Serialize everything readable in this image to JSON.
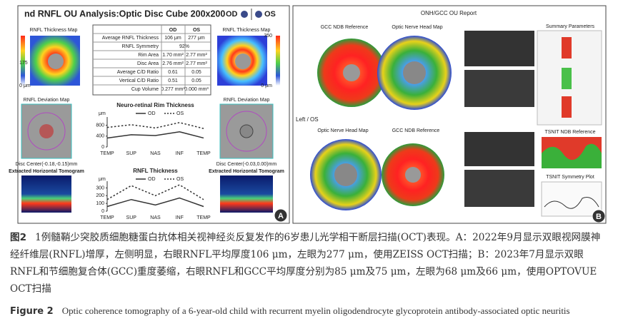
{
  "panel_a": {
    "title": "nd RNFL OU Analysis:Optic Disc Cube 200x200",
    "od": "OD",
    "os": "OS",
    "left_map_label": "RNFL Thickness Map",
    "right_map_label": "RNFL Thickness Map",
    "left_scale_mid": "175",
    "left_scale_low": "0 μm",
    "right_scale_high": "350",
    "right_scale_low": "0 μm",
    "table": {
      "header": [
        "OD",
        "OS"
      ],
      "rows": [
        [
          "Average RNFL Thickness",
          "106 μm",
          "277 μm"
        ],
        [
          "RNFL Symmetry",
          "92%"
        ],
        [
          "Rim Area",
          "1.70 mm²",
          "2.77 mm²"
        ],
        [
          "Disc Area",
          "2.76 mm²",
          "2.77 mm²"
        ],
        [
          "Average C/D Ratio",
          "0.61",
          "0.05"
        ],
        [
          "Vertical C/D Ratio",
          "0.51",
          "0.05"
        ],
        [
          "Cup Volume",
          "0.277 mm³",
          "0.000 mm³"
        ]
      ]
    },
    "left_dev_label": "RNFL Deviation Map",
    "right_dev_label": "RNFL Deviation Map",
    "left_disc_center": "Disc Center(-0.18,-0.15)mm",
    "right_disc_center": "Disc Center(-0.03,0.00)mm",
    "left_tomogram_label": "Extracted Horizontal Tomogram",
    "right_tomogram_label": "Extracted Horizontal Tomogram",
    "badge": "A"
  },
  "panel_b": {
    "title": "ONH/GCC OU Report",
    "top_left_label": "GCC NDB Reference",
    "top_mid_label": "Optic Nerve Head Map",
    "side_label": "Left / OS",
    "bottom_left_label": "Optic Nerve Head Map",
    "bottom_mid_label": "GCC NDB Reference",
    "summary_label": "Summary Parameters",
    "tsnit_label": "TSNIT NDB Reference",
    "symmetry_label": "TSNIT Symmetry Plot",
    "badge": "B"
  },
  "chart_data": [
    {
      "type": "line",
      "title": "Neuro-retinal Rim Thickness",
      "ylabel": "μm",
      "categories": [
        "TEMP",
        "SUP",
        "NAS",
        "INF",
        "TEMP"
      ],
      "series": [
        {
          "name": "OD",
          "color": "#333333",
          "dashed": false,
          "values": [
            330,
            450,
            420,
            560,
            330
          ]
        },
        {
          "name": "OS",
          "color": "#333333",
          "dashed": true,
          "values": [
            720,
            820,
            700,
            900,
            680
          ]
        }
      ],
      "ylim": [
        0,
        1000
      ],
      "yticks": [
        0,
        400,
        800
      ]
    },
    {
      "type": "line",
      "title": "RNFL Thickness",
      "ylabel": "μm",
      "categories": [
        "TEMP",
        "SUP",
        "NAS",
        "INF",
        "TEMP"
      ],
      "series": [
        {
          "name": "OD",
          "color": "#333333",
          "dashed": false,
          "values": [
            60,
            150,
            80,
            170,
            60
          ]
        },
        {
          "name": "OS",
          "color": "#333333",
          "dashed": true,
          "values": [
            150,
            330,
            200,
            340,
            150
          ]
        }
      ],
      "ylim": [
        0,
        350
      ],
      "yticks": [
        0,
        100,
        200,
        300
      ]
    }
  ],
  "caption": {
    "zh_label": "图2",
    "zh_text": "1例髓鞘少突胶质细胞糖蛋白抗体相关视神经炎反复发作的6岁患儿光学相干断层扫描(OCT)表现。A：2022年9月显示双眼视网膜神经纤维层(RNFL)增厚，左侧明显，右眼RNFL平均厚度106 μm，左眼为277 μm，使用ZEISS OCT扫描；B：2023年7月显示双眼RNFL和节细胞复合体(GCC)重度萎缩，右眼RNFL和GCC平均厚度分别为85 μm及75 μm，左眼为68 μm及66 μm，使用OPTOVUE OCT扫描",
    "en_label": "Figure 2",
    "en_text": "Optic coherence tomography of a 6-year-old child with recurrent myelin oligodendrocyte glycoprotein antibody-associated optic neuritis"
  }
}
